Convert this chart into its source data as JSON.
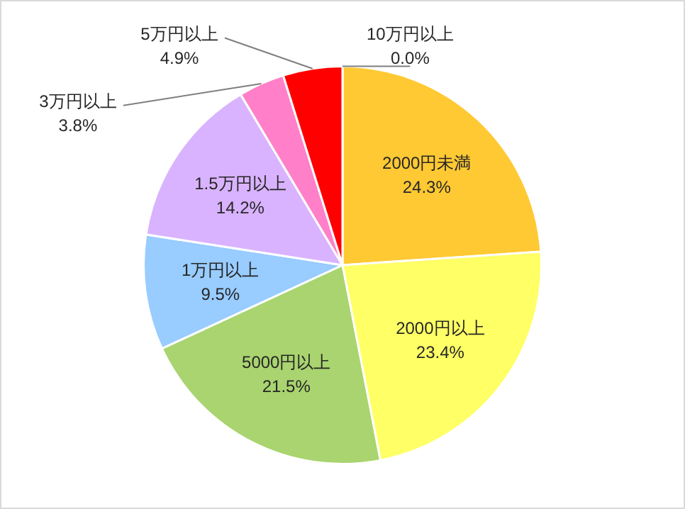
{
  "chart_data": {
    "type": "pie",
    "categories": [
      "2000円未満",
      "2000円以上",
      "5000円以上",
      "1万円以上",
      "1.5万円以上",
      "3万円以上",
      "5万円以上",
      "10万円以上"
    ],
    "values": [
      24.3,
      23.4,
      21.5,
      9.5,
      14.2,
      3.8,
      4.9,
      0.0
    ],
    "value_labels": [
      "24.3%",
      "23.4%",
      "21.5%",
      "9.5%",
      "14.2%",
      "3.8%",
      "4.9%",
      "0.0%"
    ],
    "colors": [
      "#ffc933",
      "#ffff66",
      "#a9d46f",
      "#99ccff",
      "#d9b3ff",
      "#ff80c8",
      "#ff0000",
      "#7f7f7f"
    ],
    "legend": false
  }
}
